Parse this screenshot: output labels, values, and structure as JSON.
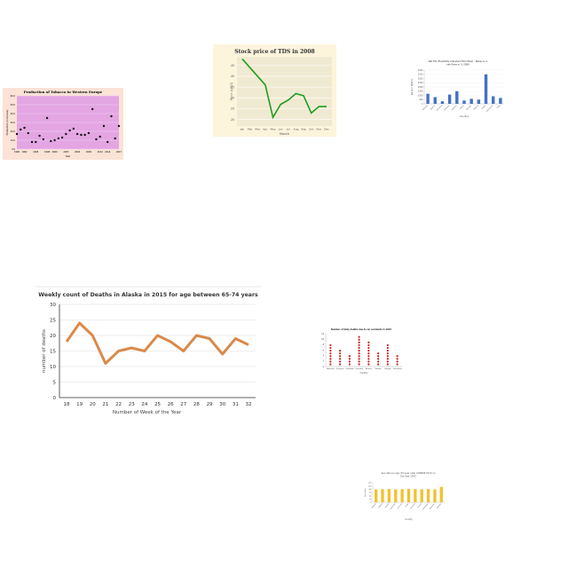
{
  "chart_data": [
    {
      "id": "tobacco",
      "type": "scatter",
      "title": "Production of Tobacco in Western Europe",
      "xlabel": "Year",
      "ylabel": "Production (in tonnes)",
      "x_ticks": [
        "1990",
        "1992",
        "1995",
        "1998",
        "2000",
        "2003",
        "2006",
        "2009",
        "2012",
        "2014",
        "2017"
      ],
      "y_ticks": [
        "0.0",
        "10.0",
        "20.0",
        "30.0",
        "40.0",
        "50.0",
        "60.0"
      ],
      "xlim": [
        1990,
        2017
      ],
      "ylim": [
        0,
        60
      ],
      "points": [
        [
          1990,
          17
        ],
        [
          1991,
          22
        ],
        [
          1992,
          24
        ],
        [
          1993,
          18
        ],
        [
          1994,
          8
        ],
        [
          1995,
          8
        ],
        [
          1996,
          15
        ],
        [
          1997,
          11
        ],
        [
          1998,
          35
        ],
        [
          1999,
          9
        ],
        [
          2000,
          10
        ],
        [
          2001,
          12
        ],
        [
          2002,
          13
        ],
        [
          2003,
          17
        ],
        [
          2004,
          21
        ],
        [
          2005,
          23
        ],
        [
          2006,
          17
        ],
        [
          2007,
          16
        ],
        [
          2008,
          16
        ],
        [
          2009,
          18
        ],
        [
          2010,
          45
        ],
        [
          2011,
          11
        ],
        [
          2012,
          14
        ],
        [
          2013,
          26
        ],
        [
          2014,
          8
        ],
        [
          2015,
          37
        ],
        [
          2016,
          12
        ],
        [
          2017,
          26
        ]
      ],
      "colors": {
        "outer": "#fbe3d6",
        "plot": "#e3a6e3",
        "point": "#111111"
      }
    },
    {
      "id": "tds",
      "type": "line",
      "title": "Stock price of TDS in 2008",
      "xlabel": "Month",
      "ylabel": "Price (USD)",
      "categories": [
        "Jan",
        "Feb",
        "Mar",
        "Apr",
        "May",
        "Jun",
        "Jul",
        "Aug",
        "Sep",
        "Oct",
        "Nov",
        "Dec"
      ],
      "y_ticks": [
        "20",
        "25",
        "30",
        "35",
        "40",
        "45"
      ],
      "ylim": [
        17,
        49
      ],
      "values": [
        48,
        44,
        40,
        36,
        21,
        27,
        29,
        32,
        31,
        23,
        26,
        26
      ],
      "colors": {
        "background": "#fdf4dc",
        "plot": "#f0ead2",
        "line": "#1f9e1f"
      }
    },
    {
      "id": "fdi",
      "type": "bar",
      "title": "Net FDI (Flexibility Adjusted FDI Inflow) - Balance in net flows in % 2008",
      "xlabel": "Country",
      "ylabel": "Value in Billions",
      "categories": [
        "Albania",
        "Algeria",
        "Armenia",
        "Bahrain",
        "Belarus",
        "Benin",
        "Bhutan",
        "Bolivia",
        "Brazil",
        "Cameroon",
        "Chile"
      ],
      "y_ticks": [
        "0",
        "500",
        "1000",
        "1500",
        "2000",
        "2500",
        "3000",
        "3500",
        "4000"
      ],
      "ylim": [
        0,
        4000
      ],
      "values": [
        1200,
        800,
        300,
        1100,
        1500,
        400,
        600,
        500,
        3500,
        900,
        700
      ],
      "colors": {
        "bar": "#4472c4"
      }
    },
    {
      "id": "alaska",
      "type": "line",
      "title": "Weekly count of Deaths in Alaska in 2015 for age between 65-74 years",
      "xlabel": "Number of Week of the Year",
      "ylabel": "number of deaths",
      "categories": [
        "18",
        "19",
        "20",
        "21",
        "22",
        "23",
        "24",
        "25",
        "26",
        "27",
        "28",
        "29",
        "30",
        "31",
        "32"
      ],
      "y_ticks": [
        "0",
        "5",
        "10",
        "15",
        "20",
        "25",
        "30"
      ],
      "ylim": [
        0,
        30
      ],
      "values": [
        18,
        24,
        20,
        11,
        15,
        16,
        15,
        20,
        18,
        15,
        20,
        19,
        14,
        19,
        17
      ],
      "colors": {
        "line": "#d98a4a",
        "grid": "#dddddd",
        "axis": "#333333"
      }
    },
    {
      "id": "stroke",
      "type": "scatter",
      "title": "Number of daily deaths due to car accidents in 2015",
      "xlabel": "Country",
      "ylabel": "",
      "categories": [
        "Australia",
        "Germany",
        "Cambodia",
        "Denmark",
        "Austria",
        "Sweden",
        "Georgia",
        "Greenland"
      ],
      "y_ticks": [
        "0",
        "2",
        "4",
        "6",
        "8",
        "10",
        "12"
      ],
      "ylim": [
        0,
        12
      ],
      "values": [
        8,
        6,
        4,
        11,
        9,
        5,
        8,
        4
      ],
      "colors": {
        "point": "#c81e1e"
      }
    },
    {
      "id": "sex_ratio",
      "type": "bar",
      "title": "Sex ratio by age (70-year olds) [UNWPP 2017] in the Year 1955",
      "xlabel": "Country",
      "ylabel": "Sex Ratio",
      "categories": [
        "Albania",
        "Algeria",
        "Angola",
        "Argentina",
        "Armenia",
        "Aruba",
        "Australia",
        "Austria",
        "Azerbaijan",
        "Bahamas",
        "Bahrain"
      ],
      "y_ticks": [
        "0",
        "20",
        "40",
        "60",
        "80",
        "100",
        "120"
      ],
      "ylim": [
        0,
        120
      ],
      "values": [
        80,
        81,
        82,
        80,
        81,
        83,
        81,
        80,
        82,
        80,
        95
      ],
      "colors": {
        "bar": "#f2c230"
      }
    }
  ]
}
